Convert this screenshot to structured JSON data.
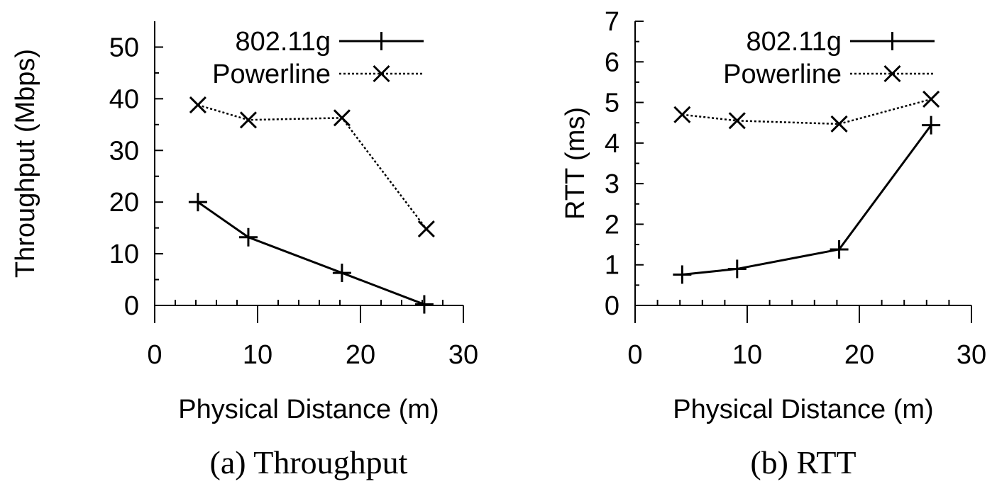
{
  "chart_data": [
    {
      "type": "line",
      "caption": "(a) Throughput",
      "xlabel": "Physical Distance (m)",
      "ylabel": "Throughput (Mbps)",
      "xlim": [
        0,
        30
      ],
      "ylim": [
        0,
        55
      ],
      "xticks": [
        "0",
        "10",
        "20",
        "30"
      ],
      "yticks": [
        "0",
        "10",
        "20",
        "30",
        "40",
        "50"
      ],
      "legend_position": "top-right",
      "grid": false,
      "series": [
        {
          "name": "802.11g",
          "marker": "plus",
          "style": "solid",
          "x": [
            4.2,
            9.1,
            18.2,
            26.2
          ],
          "y": [
            20,
            13.2,
            6.3,
            0.2
          ]
        },
        {
          "name": "Powerline",
          "marker": "x",
          "style": "dotted",
          "x": [
            4.2,
            9.1,
            18.2,
            26.4
          ],
          "y": [
            38.8,
            35.9,
            36.3,
            14.8
          ]
        }
      ]
    },
    {
      "type": "line",
      "caption": "(b) RTT",
      "xlabel": "Physical Distance (m)",
      "ylabel": "RTT (ms)",
      "xlim": [
        0,
        30
      ],
      "ylim": [
        0,
        7
      ],
      "xticks": [
        "0",
        "10",
        "20",
        "30"
      ],
      "yticks": [
        "0",
        "1",
        "2",
        "3",
        "4",
        "5",
        "6",
        "7"
      ],
      "legend_position": "top-right",
      "grid": false,
      "series": [
        {
          "name": "802.11g",
          "marker": "plus",
          "style": "solid",
          "x": [
            4.2,
            9.1,
            18.2,
            26.4
          ],
          "y": [
            0.76,
            0.9,
            1.38,
            4.44
          ]
        },
        {
          "name": "Powerline",
          "marker": "x",
          "style": "dotted",
          "x": [
            4.2,
            9.1,
            18.2,
            26.4
          ],
          "y": [
            4.7,
            4.55,
            4.47,
            5.08
          ]
        }
      ]
    }
  ]
}
